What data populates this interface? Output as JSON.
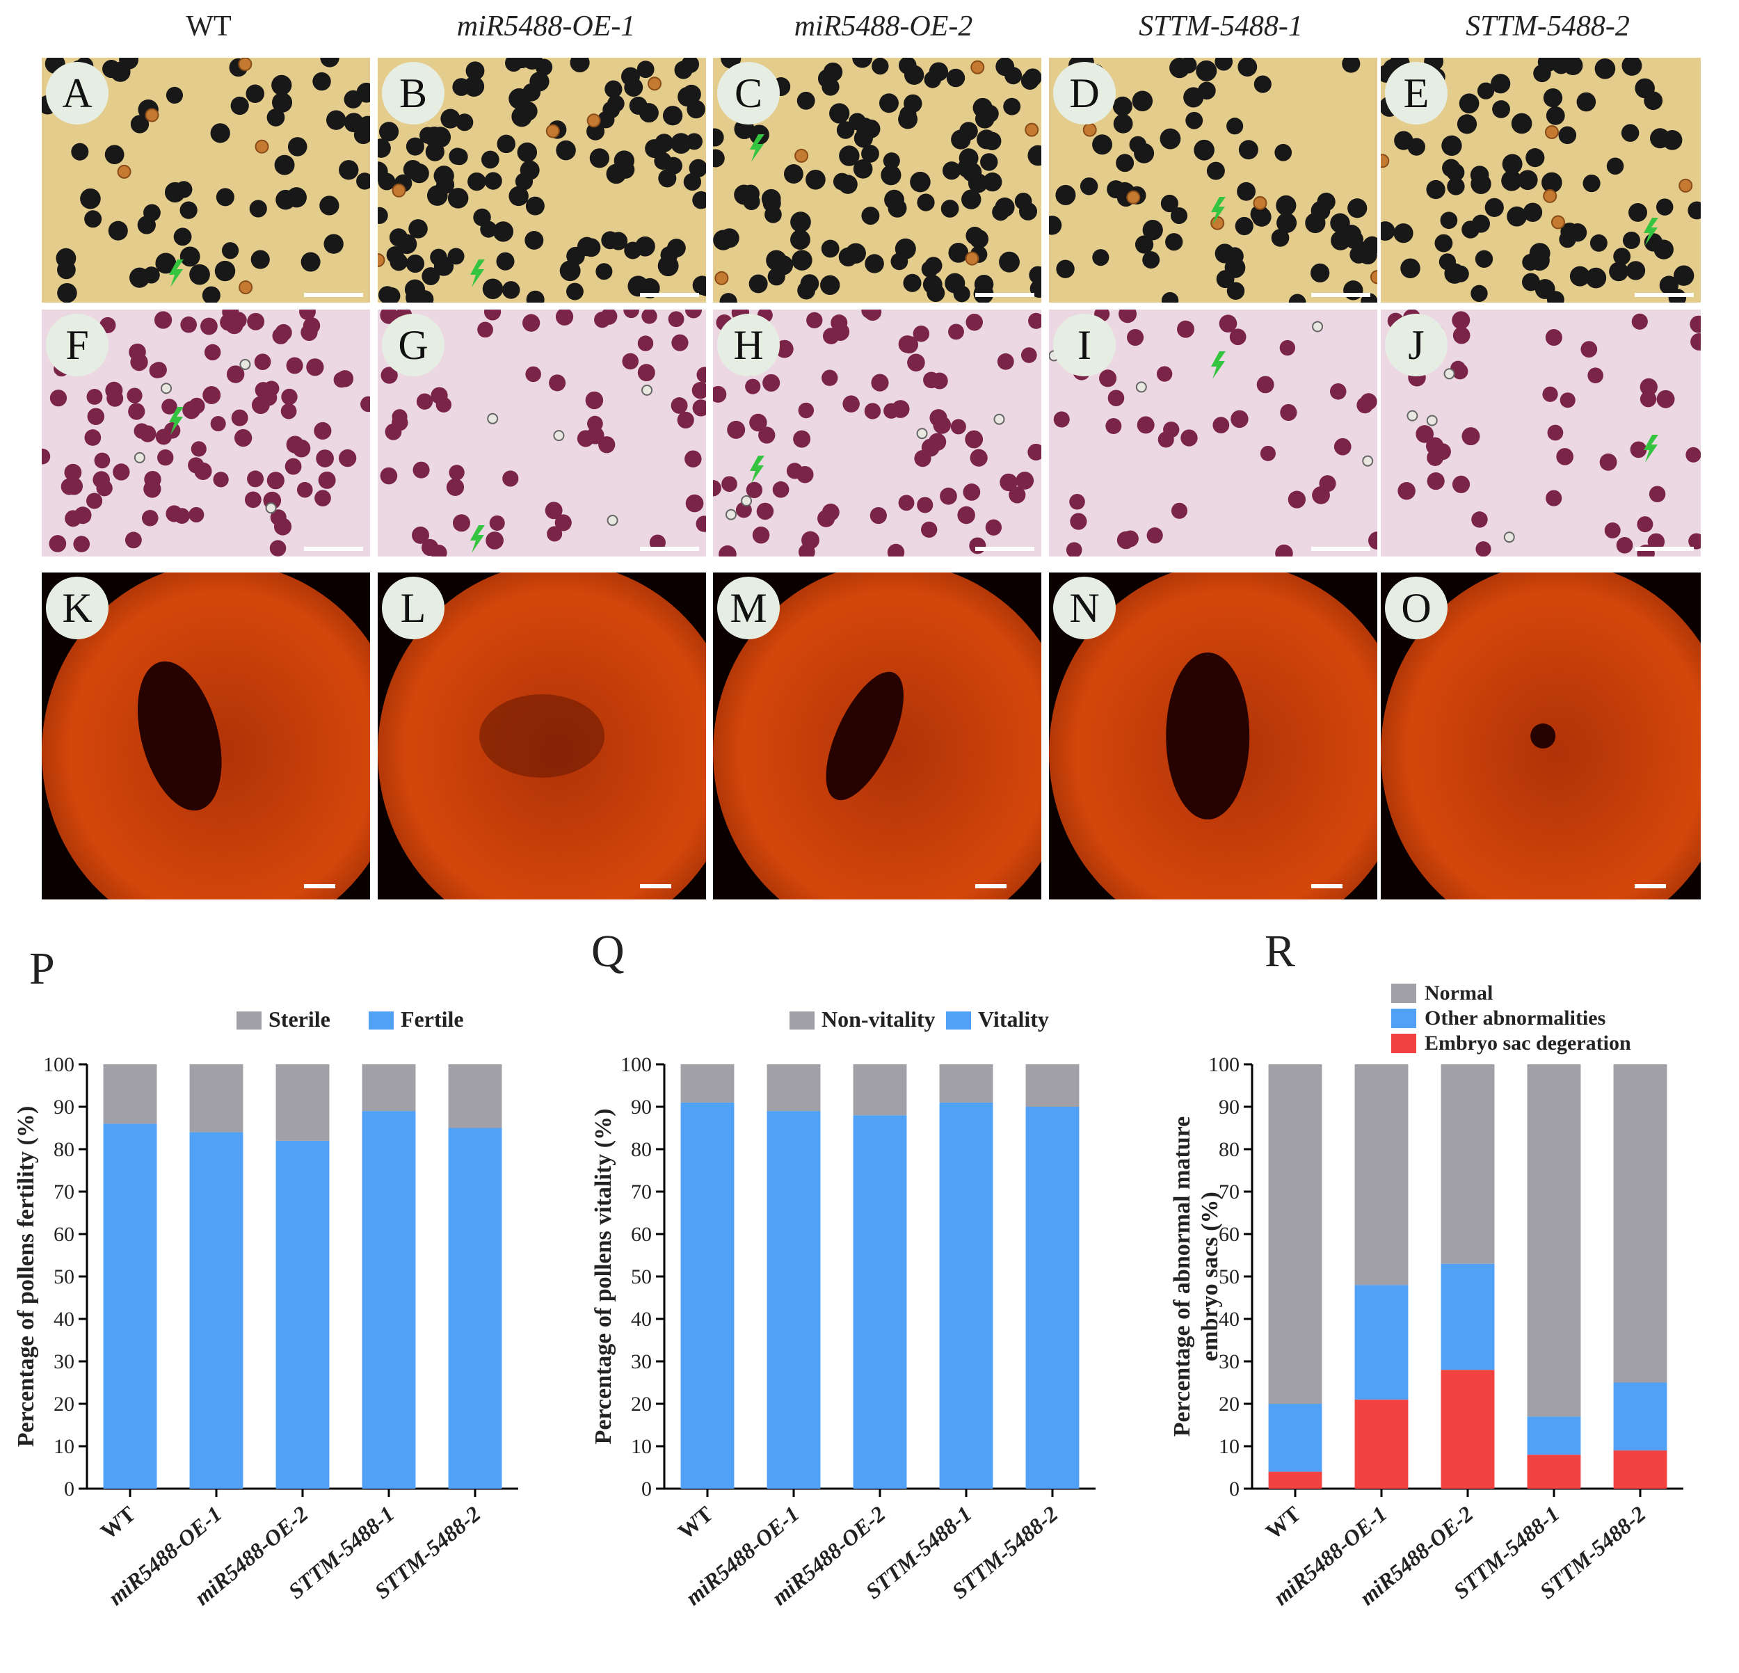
{
  "columns": [
    "WT",
    "miR5488-OE-1",
    "miR5488-OE-2",
    "STTM-5488-1",
    "STTM-5488-2"
  ],
  "panel_letters": {
    "row1": [
      "A",
      "B",
      "C",
      "D",
      "E"
    ],
    "row2": [
      "F",
      "G",
      "H",
      "I",
      "J"
    ],
    "row3": [
      "K",
      "L",
      "M",
      "N",
      "O"
    ]
  },
  "colors": {
    "blue": "#51a2f7",
    "gray": "#a0a0a6",
    "red": "#f24242",
    "arrow": "#35c43f",
    "iodine_bg": "#e4cc8c",
    "pollen_dark": "#181818",
    "stain_bg": "#ecd8e2",
    "pollen_purple": "#7a2447",
    "ovule": "#d4470a"
  },
  "chart_data": [
    {
      "type": "bar",
      "stacked": true,
      "panel": "P",
      "categories": [
        "WT",
        "miR5488-OE-1",
        "miR5488-OE-2",
        "STTM-5488-1",
        "STTM-5488-2"
      ],
      "series": [
        {
          "name": "Fertile",
          "values": [
            86,
            84,
            82,
            89,
            85
          ]
        },
        {
          "name": "Sterile",
          "values": [
            14,
            16,
            18,
            11,
            15
          ]
        }
      ],
      "legend": [
        "Sterile",
        "Fertile"
      ],
      "ylabel": "Percentage of pollens fertility (%)",
      "ylabel_lines": [
        "Percentage of pollens fertility (%)"
      ],
      "yticks": [
        0,
        10,
        20,
        30,
        40,
        50,
        60,
        70,
        80,
        90,
        100
      ],
      "ylim": [
        0,
        100
      ]
    },
    {
      "type": "bar",
      "stacked": true,
      "panel": "Q",
      "categories": [
        "WT",
        "miR5488-OE-1",
        "miR5488-OE-2",
        "STTM-5488-1",
        "STTM-5488-2"
      ],
      "series": [
        {
          "name": "Vitality",
          "values": [
            91,
            89,
            88,
            91,
            90
          ]
        },
        {
          "name": "Non-vitality",
          "values": [
            9,
            11,
            12,
            9,
            10
          ]
        }
      ],
      "legend": [
        "Non-vitality",
        "Vitality"
      ],
      "ylabel": "Percentage of pollens vitality (%)",
      "ylabel_lines": [
        "Percentage of pollens vitality (%)"
      ],
      "yticks": [
        0,
        10,
        20,
        30,
        40,
        50,
        60,
        70,
        80,
        90,
        100
      ],
      "ylim": [
        0,
        100
      ]
    },
    {
      "type": "bar",
      "stacked": true,
      "panel": "R",
      "categories": [
        "WT",
        "miR5488-OE-1",
        "miR5488-OE-2",
        "STTM-5488-1",
        "STTM-5488-2"
      ],
      "series": [
        {
          "name": "Embryo sac degeration",
          "values": [
            4,
            21,
            28,
            8,
            9
          ]
        },
        {
          "name": "Other abnormalities",
          "values": [
            16,
            27,
            25,
            9,
            16
          ]
        },
        {
          "name": "Normal",
          "values": [
            80,
            52,
            47,
            83,
            75
          ]
        }
      ],
      "legend": [
        "Normal",
        "Other abnormalities",
        "Embryo sac degeration"
      ],
      "ylabel": "Percentage of abnormal mature embryo sacs (%)",
      "ylabel_lines": [
        "Percentage of abnormal mature",
        "embryo sacs (%)"
      ],
      "yticks": [
        0,
        10,
        20,
        30,
        40,
        50,
        60,
        70,
        80,
        90,
        100
      ],
      "ylim": [
        0,
        100
      ]
    }
  ]
}
